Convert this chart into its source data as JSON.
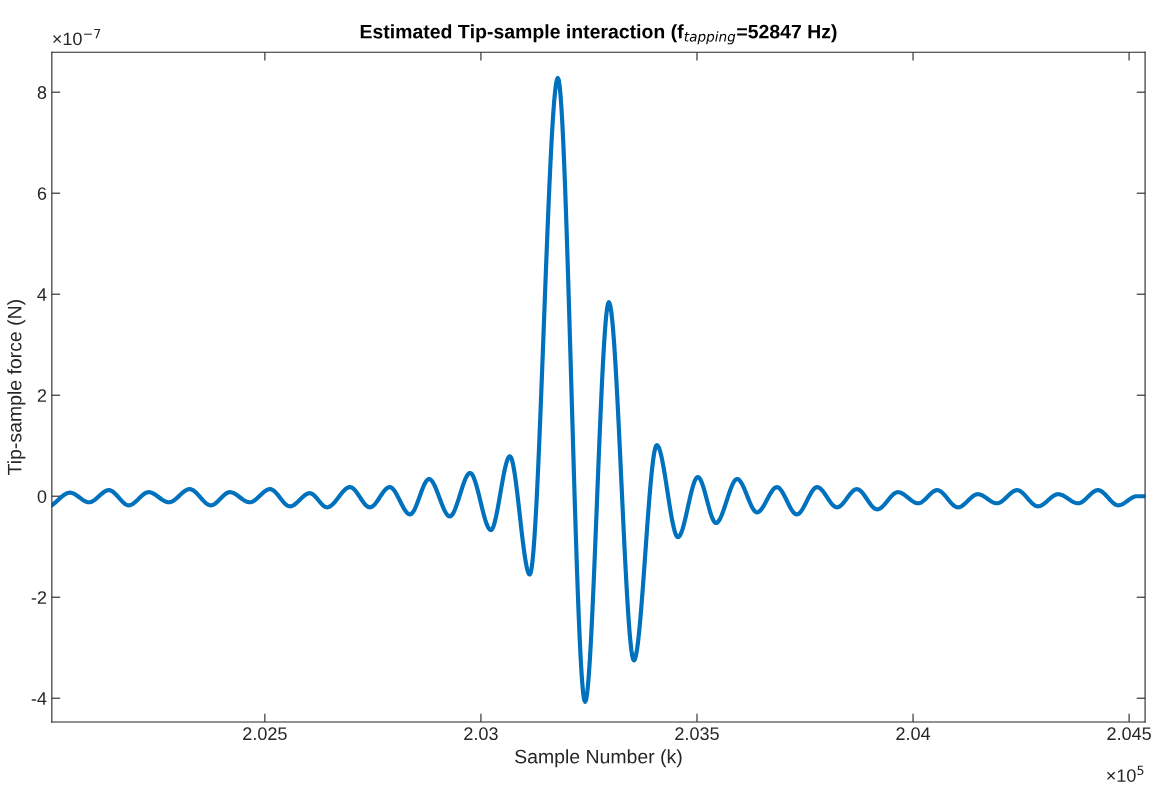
{
  "chart_data": {
    "type": "line",
    "title": "Estimated Tip-sample interaction (f$_{tapping}$=52847 Hz)",
    "xlabel": "Sample Number (k)",
    "ylabel": "Tip-sample force (N)",
    "annotations": [
      "×10$^{−7}$",
      "×10$^{5}$"
    ],
    "x": [
      2.02007,
      2.02049,
      2.02093,
      2.02139,
      2.02185,
      2.02231,
      2.02278,
      2.02326,
      2.02375,
      2.02419,
      2.02465,
      2.02512,
      2.02558,
      2.02604,
      2.02644,
      2.02697,
      2.02743,
      2.02789,
      2.02836,
      2.0288,
      2.02928,
      2.02975,
      2.03023,
      2.03067,
      2.03113,
      2.03178,
      2.03241,
      2.03296,
      2.03354,
      2.03407,
      2.03456,
      2.03502,
      2.03544,
      2.03593,
      2.03639,
      2.03685,
      2.03731,
      2.03778,
      2.03824,
      2.0387,
      2.03917,
      2.03965,
      2.04012,
      2.04056,
      2.04104,
      2.0415,
      2.04194,
      2.04241,
      2.04289,
      2.04336,
      2.04382,
      2.04428,
      2.04475,
      2.04518,
      2.04537
    ],
    "series": [
      {
        "color": "#0072bd",
        "values": [
          -0.18,
          0.07,
          -0.12,
          0.12,
          -0.18,
          0.08,
          -0.12,
          0.14,
          -0.18,
          0.08,
          -0.12,
          0.14,
          -0.2,
          0.06,
          -0.22,
          0.18,
          -0.22,
          0.18,
          -0.36,
          0.34,
          -0.4,
          0.46,
          -0.67,
          0.79,
          -1.55,
          8.28,
          -4.07,
          3.84,
          -3.25,
          1.01,
          -0.81,
          0.38,
          -0.53,
          0.34,
          -0.32,
          0.18,
          -0.36,
          0.18,
          -0.22,
          0.14,
          -0.26,
          0.08,
          -0.14,
          0.12,
          -0.22,
          0.04,
          -0.14,
          0.12,
          -0.2,
          0.04,
          -0.14,
          0.12,
          -0.18,
          0.0,
          0.0
        ]
      }
    ],
    "xlim": [
      2.02007,
      2.04537
    ],
    "ylim": [
      -4.47,
      8.79
    ],
    "xticks": [
      2.025,
      2.03,
      2.035,
      2.04,
      2.045
    ],
    "yticks": [
      -4,
      -2,
      0,
      2,
      4,
      6,
      8
    ],
    "grid": false,
    "legend": false,
    "marker": "none",
    "line_style": "solid"
  }
}
